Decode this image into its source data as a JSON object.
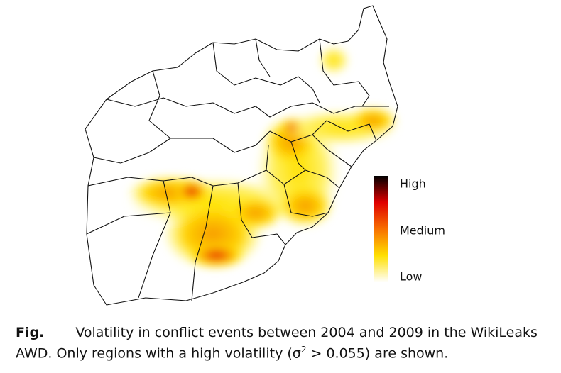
{
  "figure": {
    "legend": {
      "labels": [
        "High",
        "Medium",
        "Low"
      ]
    },
    "caption": {
      "label": "Fig.",
      "line1": "Volatility in conflict events between 2004 and 2009 in the WikiLeaks",
      "line2_before": "AWD. Only regions with a high volatility (",
      "symbol": "σ",
      "superscript": "2",
      "line2_after": " > 0.055) are shown."
    }
  }
}
